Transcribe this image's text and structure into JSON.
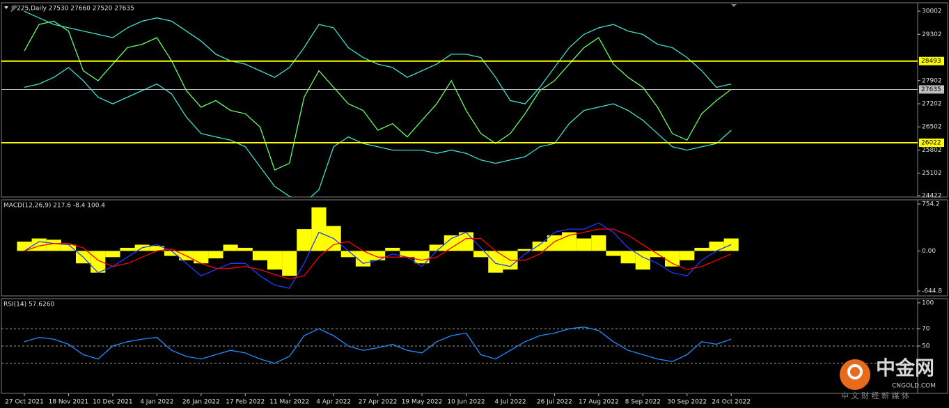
{
  "chart_data": [
    {
      "type": "line",
      "title": "JP225,Daily  27530 27660 27520 27635",
      "categories": [
        "27 Oct 2021",
        null,
        null,
        "18 Nov 2021",
        null,
        null,
        "10 Dec 2021",
        null,
        null,
        "4 Jan 2022",
        null,
        null,
        "26 Jan 2022",
        null,
        null,
        "17 Feb 2022",
        null,
        null,
        "11 Mar 2022",
        null,
        null,
        "4 Apr 2022",
        null,
        null,
        "27 Apr 2022",
        null,
        null,
        "19 May 2022",
        null,
        null,
        "10 Jun 2022",
        null,
        null,
        "4 Jul 2022",
        null,
        null,
        "26 Jul 2022",
        null,
        null,
        "17 Aug 2022",
        null,
        null,
        "8 Sep 2022",
        null,
        null,
        "30 Sep 2022",
        null,
        null,
        "24 Oct 2022"
      ],
      "series": [
        {
          "color": "#66ff66",
          "values": [
            28800,
            29600,
            29700,
            29400,
            28200,
            27900,
            28400,
            28900,
            29000,
            29200,
            28500,
            27600,
            27100,
            27300,
            27000,
            26900,
            26500,
            25200,
            25400,
            27400,
            28200,
            27700,
            27200,
            27000,
            26400,
            26600,
            26200,
            26700,
            27200,
            27900,
            27000,
            26300,
            26000,
            26300,
            26900,
            27600,
            27900,
            28400,
            28900,
            29200,
            28400,
            28000,
            27700,
            27100,
            26300,
            26100,
            26900,
            27300,
            27635
          ]
        },
        {
          "color": "#40e0d0",
          "values": [
            30000,
            29800,
            29600,
            29500,
            29400,
            29300,
            29200,
            29500,
            29700,
            29800,
            29700,
            29400,
            29100,
            28700,
            28500,
            28400,
            28200,
            28000,
            28300,
            28900,
            29600,
            29500,
            28900,
            28600,
            28400,
            28300,
            28000,
            28200,
            28400,
            28700,
            28700,
            28600,
            28000,
            27300,
            27200,
            27700,
            28300,
            28900,
            29300,
            29500,
            29600,
            29400,
            29300,
            29000,
            28900,
            28600,
            28200,
            27700,
            27800
          ]
        },
        {
          "color": "#40e0d0",
          "values": [
            27700,
            27800,
            28000,
            28300,
            27900,
            27400,
            27200,
            27400,
            27600,
            27800,
            27500,
            26800,
            26300,
            26200,
            26100,
            25900,
            25300,
            24700,
            24400,
            24200,
            24600,
            25900,
            26200,
            26000,
            25900,
            25800,
            25800,
            25800,
            25700,
            25800,
            25700,
            25500,
            25400,
            25500,
            25600,
            25900,
            26000,
            26600,
            27000,
            27100,
            27200,
            27000,
            26700,
            26300,
            25900,
            25800,
            25900,
            26000,
            26400
          ]
        }
      ],
      "hlines": [
        {
          "value": 28493,
          "color": "#ffff00"
        },
        {
          "value": 26022,
          "color": "#ffff00"
        },
        {
          "value": 27635,
          "color": "#c0c0c0"
        }
      ],
      "ylim": [
        24380,
        30256
      ],
      "yticks": [
        30002,
        29302,
        27902,
        27202,
        26502,
        25802,
        25102,
        24422
      ]
    },
    {
      "type": "bar",
      "title": "MACD(12,26,9) 217.6 -8.4 100.4",
      "series": [
        {
          "type": "bar",
          "color": "#ffff00",
          "values": [
            150,
            200,
            180,
            100,
            -200,
            -350,
            -100,
            50,
            100,
            80,
            -80,
            -150,
            -200,
            -120,
            100,
            50,
            -150,
            -300,
            -400,
            350,
            700,
            400,
            -100,
            -250,
            -150,
            50,
            -100,
            -200,
            100,
            250,
            300,
            -100,
            -350,
            -300,
            30,
            150,
            250,
            300,
            200,
            250,
            -80,
            -200,
            -300,
            -100,
            -250,
            -150,
            50,
            150,
            200
          ]
        },
        {
          "type": "line",
          "color": "#1e3cff",
          "values": [
            0,
            150,
            120,
            100,
            -100,
            -350,
            -250,
            -100,
            50,
            100,
            0,
            -200,
            -400,
            -300,
            -200,
            -200,
            -400,
            -550,
            -600,
            -200,
            300,
            200,
            0,
            -200,
            -150,
            -50,
            -100,
            -250,
            0,
            200,
            300,
            50,
            -200,
            -250,
            -50,
            100,
            300,
            350,
            350,
            450,
            300,
            50,
            -100,
            -200,
            -350,
            -400,
            -150,
            0,
            100
          ]
        },
        {
          "type": "line",
          "color": "#ff0000",
          "values": [
            0,
            80,
            120,
            120,
            50,
            -150,
            -250,
            -200,
            -100,
            0,
            30,
            -80,
            -200,
            -280,
            -280,
            -250,
            -300,
            -380,
            -450,
            -400,
            -100,
            100,
            150,
            0,
            -100,
            -100,
            -100,
            -150,
            -100,
            50,
            200,
            200,
            0,
            -150,
            -150,
            -50,
            150,
            250,
            300,
            350,
            350,
            250,
            100,
            -50,
            -200,
            -300,
            -250,
            -150,
            -50
          ]
        }
      ],
      "ylim": [
        -723,
        821
      ],
      "yticks": [
        754.2,
        {
          "value": 0,
          "label": "0.00"
        },
        -644.8
      ]
    },
    {
      "type": "line",
      "title": "RSI(14) 57.6260",
      "series": [
        {
          "color": "#1e90ff",
          "values": [
            55,
            60,
            58,
            52,
            40,
            35,
            50,
            55,
            58,
            60,
            45,
            38,
            35,
            40,
            45,
            42,
            35,
            30,
            38,
            62,
            70,
            62,
            50,
            45,
            48,
            52,
            45,
            42,
            55,
            62,
            65,
            40,
            35,
            45,
            55,
            62,
            65,
            70,
            72,
            68,
            55,
            45,
            40,
            35,
            32,
            40,
            55,
            52,
            58
          ]
        }
      ],
      "levels": [
        70,
        50,
        30
      ],
      "ylim": [
        -4.8,
        104.8
      ],
      "yticks": [
        100,
        70,
        50
      ]
    }
  ],
  "watermark": {
    "brand": "中金网",
    "site": "CNGOLD.COM",
    "slogan": "中 文 财 经 新 媒 体"
  }
}
